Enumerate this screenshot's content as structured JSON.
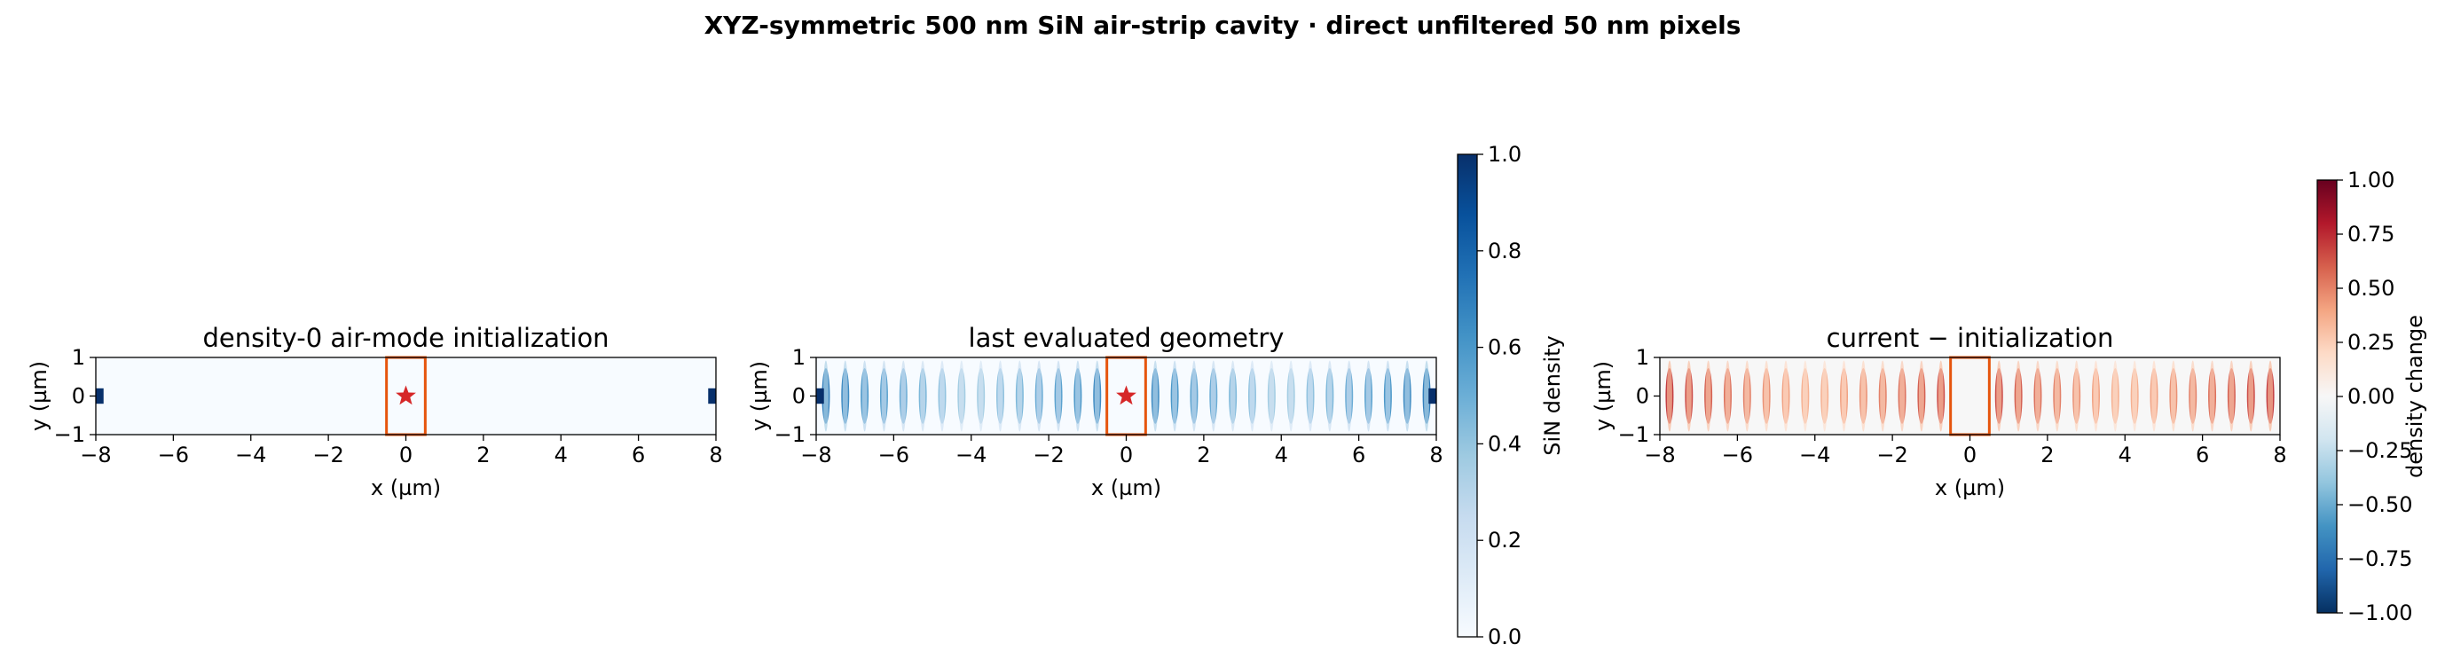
{
  "suptitle": "XYZ-symmetric 500 nm SiN air-strip cavity · direct unfiltered 50 nm pixels",
  "colors": {
    "sin_dark": "#08306b",
    "outline": "#e6550d",
    "source_star": "#d62728",
    "blue_strong": "#2166ac",
    "red_strong": "#b2182b"
  },
  "chart_data": [
    {
      "type": "heatmap",
      "title": "density-0 air-mode initialization",
      "xlabel": "x (µm)",
      "ylabel": "y (µm)",
      "xlim": [
        -8,
        8
      ],
      "ylim": [
        -1,
        1
      ],
      "xticks": [
        -8,
        -6,
        -4,
        -2,
        0,
        2,
        4,
        6,
        8
      ],
      "xtick_labels": [
        "−8",
        "−6",
        "−4",
        "−2",
        "0",
        "2",
        "4",
        "6",
        "8"
      ],
      "yticks": [
        -1,
        0,
        1
      ],
      "ytick_labels": [
        "−1",
        "0",
        "1"
      ],
      "colormap": "Blues",
      "background_density": 0.0,
      "feeds": [
        {
          "x": [
            -8.0,
            -7.8
          ],
          "y": [
            -0.2,
            0.2
          ],
          "density": 1.0
        },
        {
          "x": [
            7.8,
            8.0
          ],
          "y": [
            -0.2,
            0.2
          ],
          "density": 1.0
        }
      ],
      "air_region": {
        "x": [
          -0.5,
          0.5
        ],
        "y": [
          -1,
          1
        ]
      },
      "source": {
        "x": 0,
        "y": 0
      },
      "ripples": null
    },
    {
      "type": "heatmap",
      "title": "last evaluated geometry",
      "xlabel": "x (µm)",
      "ylabel": "y (µm)",
      "xlim": [
        -8,
        8
      ],
      "ylim": [
        -1,
        1
      ],
      "xticks": [
        -8,
        -6,
        -4,
        -2,
        0,
        2,
        4,
        6,
        8
      ],
      "xtick_labels": [
        "−8",
        "−6",
        "−4",
        "−2",
        "0",
        "2",
        "4",
        "6",
        "8"
      ],
      "yticks": [
        -1,
        0,
        1
      ],
      "ytick_labels": [
        "−1",
        "0",
        "1"
      ],
      "colormap": "Blues",
      "background_density": 0.0,
      "feeds": [
        {
          "x": [
            -8.0,
            -7.8
          ],
          "y": [
            -0.2,
            0.2
          ],
          "density": 1.0
        },
        {
          "x": [
            7.8,
            8.0
          ],
          "y": [
            -0.2,
            0.2
          ],
          "density": 1.0
        }
      ],
      "air_region": {
        "x": [
          -0.5,
          0.5
        ],
        "y": [
          -1,
          1
        ]
      },
      "source": {
        "x": 0,
        "y": 0
      },
      "ripples": {
        "period_um": 0.5,
        "peak_density": 0.75,
        "edge_density": 0.35,
        "sign": 1
      }
    },
    {
      "type": "heatmap",
      "title": "current − initialization",
      "xlabel": "x (µm)",
      "ylabel": "y (µm)",
      "xlim": [
        -8,
        8
      ],
      "ylim": [
        -1,
        1
      ],
      "xticks": [
        -8,
        -6,
        -4,
        -2,
        0,
        2,
        4,
        6,
        8
      ],
      "xtick_labels": [
        "−8",
        "−6",
        "−4",
        "−2",
        "0",
        "2",
        "4",
        "6",
        "8"
      ],
      "yticks": [
        -1,
        0,
        1
      ],
      "ytick_labels": [
        "−1",
        "0",
        "1"
      ],
      "colormap": "RdBu_r",
      "background_density": 0.0,
      "feeds": [],
      "air_region": {
        "x": [
          -0.5,
          0.5
        ],
        "y": [
          -1,
          1
        ]
      },
      "source": null,
      "ripples": {
        "period_um": 0.5,
        "peak_density": 0.75,
        "edge_density": 0.35,
        "sign": 1
      }
    }
  ],
  "colorbars": [
    {
      "label": "SiN density",
      "range": [
        0,
        1
      ],
      "ticks": [
        0,
        0.2,
        0.4,
        0.6,
        0.8,
        1.0
      ],
      "tick_labels": [
        "0.0",
        "0.2",
        "0.4",
        "0.6",
        "0.8",
        "1.0"
      ],
      "colormap": "Blues"
    },
    {
      "label": "density change",
      "range": [
        -1,
        1
      ],
      "ticks": [
        -1,
        -0.75,
        -0.5,
        -0.25,
        0,
        0.25,
        0.5,
        0.75,
        1.0
      ],
      "tick_labels": [
        "−1.00",
        "−0.75",
        "−0.50",
        "−0.25",
        "0.00",
        "0.25",
        "0.50",
        "0.75",
        "1.00"
      ],
      "colormap": "RdBu_r"
    }
  ]
}
